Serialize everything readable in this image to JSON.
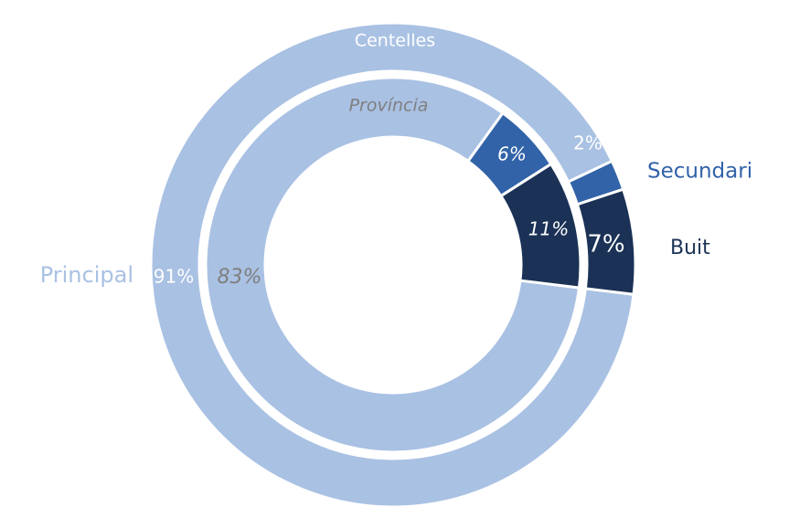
{
  "chart_data": {
    "type": "donut",
    "categories": [
      "Principal",
      "Secundari",
      "Buit"
    ],
    "colors": [
      "#a9c1e3",
      "#3263a8",
      "#1b3256"
    ],
    "series": [
      {
        "name": "Centelles",
        "values": [
          91,
          2,
          7
        ],
        "value_labels": [
          "91%",
          "2%",
          "7%"
        ]
      },
      {
        "name": "Província",
        "values": [
          83,
          6,
          11
        ],
        "value_labels": [
          "83%",
          "6%",
          "11%"
        ]
      }
    ]
  }
}
